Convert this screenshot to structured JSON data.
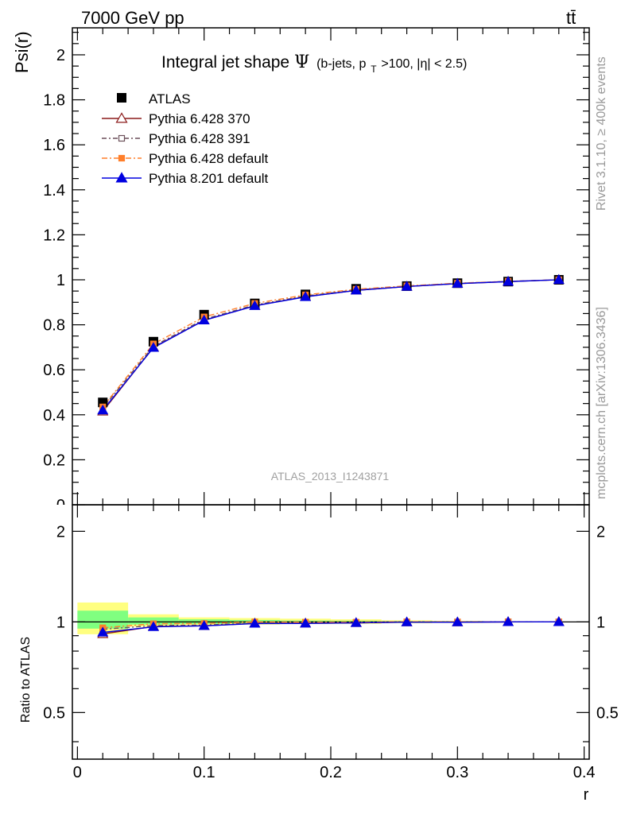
{
  "header": {
    "energy_label": "7000 GeV pp",
    "process_label": "tt̄"
  },
  "side_text": {
    "rivet": "Rivet 3.1.10, ≥ 400k events",
    "mcplots": "mcplots.cern.ch [arXiv:1306.3436]"
  },
  "watermark": "ATLAS_2013_I1243871",
  "chart_data": {
    "type": "line",
    "title_main": "Integral jet shape",
    "title_symbol": "Ψ",
    "title_cuts_pre": "(b-jets, p",
    "title_cuts_sub": "T",
    "title_cuts_post": ">100, |η| < 2.5)",
    "xlabel": "r",
    "ylabel": "Psi(r)",
    "ratio_ylabel": "Ratio to ATLAS",
    "xlim": [
      -0.004,
      0.404
    ],
    "ylim": [
      0,
      2.12
    ],
    "ratio_ylim": [
      0.35,
      2.45
    ],
    "legend_position": "top-left",
    "x_ticks": [
      "0",
      "0.1",
      "0.2",
      "0.3",
      "0.4"
    ],
    "y_ticks": [
      "0.2",
      "0.4",
      "0.6",
      "0.8",
      "1",
      "1.2",
      "1.4",
      "1.6",
      "1.8",
      "2"
    ],
    "ratio_ticks": [
      "0.5",
      "1",
      "2"
    ],
    "x": [
      0.02,
      0.06,
      0.1,
      0.14,
      0.18,
      0.22,
      0.26,
      0.3,
      0.34,
      0.38
    ],
    "data": {
      "name": "ATLAS",
      "values": [
        0.455,
        0.725,
        0.845,
        0.895,
        0.935,
        0.96,
        0.972,
        0.985,
        0.992,
        1.0
      ]
    },
    "ratio_bands": [
      {
        "x0": 0.0,
        "x1": 0.04,
        "yellow": [
          0.91,
          1.16
        ],
        "green": [
          0.95,
          1.09
        ]
      },
      {
        "x0": 0.04,
        "x1": 0.08,
        "yellow": [
          0.965,
          1.06
        ],
        "green": [
          0.98,
          1.035
        ]
      },
      {
        "x0": 0.08,
        "x1": 0.12,
        "yellow": [
          0.975,
          1.035
        ],
        "green": [
          0.985,
          1.02
        ]
      },
      {
        "x0": 0.12,
        "x1": 0.16,
        "yellow": [
          0.98,
          1.03
        ],
        "green": [
          0.99,
          1.015
        ]
      },
      {
        "x0": 0.16,
        "x1": 0.2,
        "yellow": [
          0.985,
          1.025
        ],
        "green": [
          0.99,
          1.01
        ]
      },
      {
        "x0": 0.2,
        "x1": 0.24,
        "yellow": [
          0.985,
          1.02
        ],
        "green": [
          0.993,
          1.008
        ]
      },
      {
        "x0": 0.24,
        "x1": 0.28,
        "yellow": [
          0.99,
          1.012
        ],
        "green": [
          0.995,
          1.005
        ]
      },
      {
        "x0": 0.28,
        "x1": 0.32,
        "yellow": [
          0.993,
          1.008
        ],
        "green": [
          0.997,
          1.003
        ]
      },
      {
        "x0": 0.32,
        "x1": 0.36,
        "yellow": [
          0.995,
          1.005
        ],
        "green": [
          0.998,
          1.002
        ]
      },
      {
        "x0": 0.36,
        "x1": 0.4,
        "yellow": [
          0.998,
          1.002
        ],
        "green": [
          0.999,
          1.001
        ]
      }
    ],
    "series": [
      {
        "name": "Pythia 6.428 370",
        "color": "#8b1a1a",
        "marker": "triangle-open",
        "dash": "",
        "values": [
          0.415,
          0.7,
          0.82,
          0.885,
          0.925,
          0.953,
          0.97,
          0.983,
          0.992,
          1.0
        ]
      },
      {
        "name": "Pythia 6.428 391",
        "color": "#6b4f5a",
        "marker": "square-open",
        "dash": "6,3,2,3",
        "values": [
          0.43,
          0.705,
          0.825,
          0.888,
          0.928,
          0.955,
          0.971,
          0.984,
          0.993,
          1.0
        ]
      },
      {
        "name": "Pythia 6.428 default",
        "color": "#ff7f2a",
        "marker": "square-filled",
        "dash": "7,3,2,3",
        "values": [
          0.435,
          0.715,
          0.835,
          0.895,
          0.933,
          0.958,
          0.973,
          0.985,
          0.993,
          1.0
        ]
      },
      {
        "name": "Pythia 8.201 default",
        "color": "#0000e0",
        "marker": "triangle-filled",
        "dash": "",
        "values": [
          0.42,
          0.698,
          0.82,
          0.884,
          0.924,
          0.953,
          0.97,
          0.983,
          0.992,
          1.0
        ]
      }
    ]
  }
}
